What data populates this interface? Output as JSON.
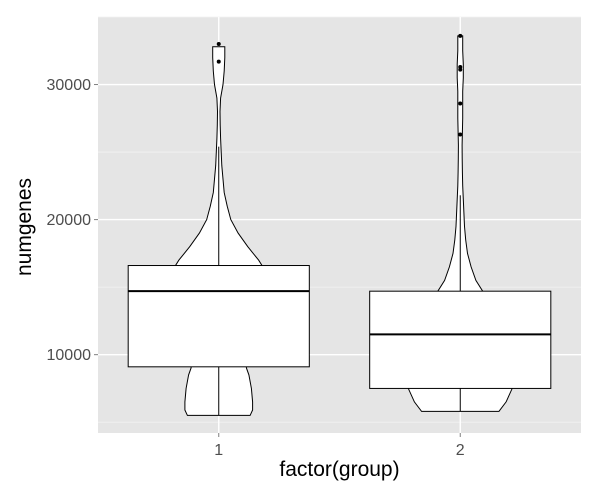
{
  "chart_data": {
    "type": "violin+boxplot",
    "xlabel": "factor(group)",
    "ylabel": "numgenes",
    "ylim": [
      4200,
      35000
    ],
    "y_ticks": [
      10000,
      20000,
      30000
    ],
    "y_tick_labels": [
      "10000",
      "20000",
      "30000"
    ],
    "categories": [
      "1",
      "2"
    ],
    "grid": true,
    "colors": {
      "panel": "#e5e5e5",
      "grid_major": "#ffffff",
      "grid_minor": "#f2f2f2",
      "outline": "#000000",
      "box_fill": "#ffffff",
      "violin_fill": "#ffffff"
    },
    "groups": [
      {
        "label": "1",
        "violin": {
          "min": 5500,
          "max": 32800,
          "profile": [
            [
              5500,
              0.26
            ],
            [
              5900,
              0.28
            ],
            [
              6500,
              0.28
            ],
            [
              7500,
              0.27
            ],
            [
              8500,
              0.25
            ],
            [
              9000,
              0.23
            ],
            [
              9500,
              0.22
            ],
            [
              10000,
              0.24
            ],
            [
              11000,
              0.3
            ],
            [
              12000,
              0.37
            ],
            [
              13000,
              0.42
            ],
            [
              14000,
              0.44
            ],
            [
              15000,
              0.44
            ],
            [
              16000,
              0.4
            ],
            [
              17000,
              0.33
            ],
            [
              18000,
              0.24
            ],
            [
              19000,
              0.16
            ],
            [
              20000,
              0.1
            ],
            [
              21000,
              0.07
            ],
            [
              22000,
              0.045
            ],
            [
              23000,
              0.035
            ],
            [
              24000,
              0.025
            ],
            [
              25000,
              0.02
            ],
            [
              26000,
              0.015
            ],
            [
              27000,
              0.012
            ],
            [
              28000,
              0.01
            ],
            [
              29000,
              0.015
            ],
            [
              30000,
              0.035
            ],
            [
              31000,
              0.045
            ],
            [
              32000,
              0.05
            ],
            [
              32800,
              0.05
            ]
          ]
        },
        "box": {
          "whisker_low": 5500,
          "q1": 9100,
          "median": 14700,
          "q3": 16600,
          "whisker_high": 25400
        },
        "outliers": [
          31700,
          33000
        ]
      },
      {
        "label": "2",
        "violin": {
          "min": 5800,
          "max": 33600,
          "profile": [
            [
              5800,
              0.32
            ],
            [
              6500,
              0.38
            ],
            [
              7500,
              0.43
            ],
            [
              8500,
              0.45
            ],
            [
              9500,
              0.44
            ],
            [
              10500,
              0.43
            ],
            [
              11500,
              0.42
            ],
            [
              12500,
              0.38
            ],
            [
              13500,
              0.3
            ],
            [
              14500,
              0.2
            ],
            [
              15500,
              0.13
            ],
            [
              16500,
              0.09
            ],
            [
              17500,
              0.06
            ],
            [
              18500,
              0.045
            ],
            [
              19500,
              0.035
            ],
            [
              20500,
              0.03
            ],
            [
              21500,
              0.025
            ],
            [
              22500,
              0.02
            ],
            [
              23500,
              0.018
            ],
            [
              24500,
              0.016
            ],
            [
              25500,
              0.015
            ],
            [
              26500,
              0.018
            ],
            [
              27500,
              0.02
            ],
            [
              28500,
              0.02
            ],
            [
              29500,
              0.02
            ],
            [
              30500,
              0.025
            ],
            [
              31500,
              0.025
            ],
            [
              32500,
              0.02
            ],
            [
              33600,
              0.02
            ]
          ]
        },
        "box": {
          "whisker_low": 5800,
          "q1": 7500,
          "median": 11500,
          "q3": 14700,
          "whisker_high": 21800
        },
        "outliers": [
          26300,
          28600,
          31100,
          31300,
          33600
        ]
      }
    ]
  }
}
